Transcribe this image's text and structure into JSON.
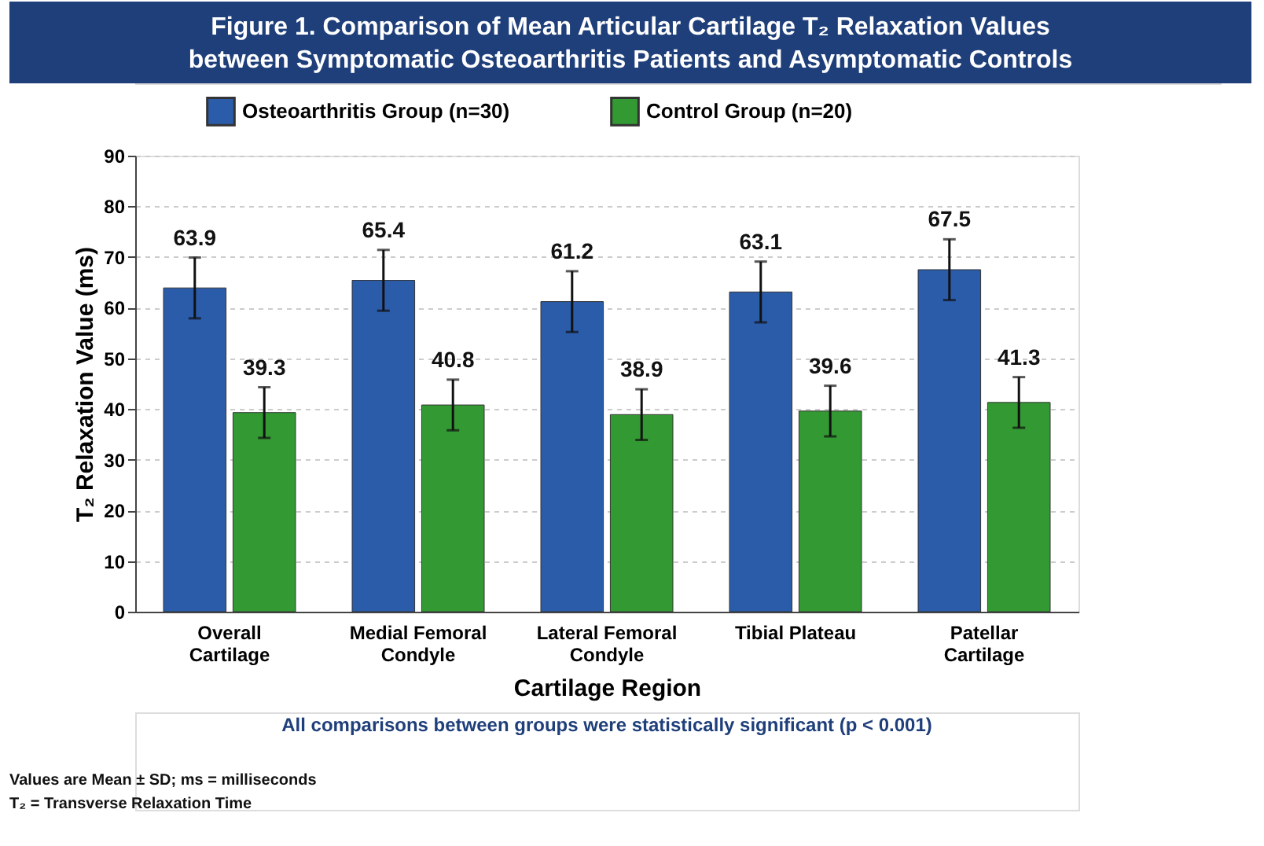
{
  "chart_data": {
    "type": "bar",
    "title": "Figure 1. Comparison of Mean Articular Cartilage T₂ Relaxation Values between Symptomatic Osteoarthritis Patients and Asymptomatic Controls",
    "xlabel": "Cartilage Region",
    "ylabel": "T₂ Relaxation Value (ms)",
    "categories": [
      "Overall Cartilage",
      "Medial Femoral Condyle",
      "Lateral Femoral Condyle",
      "Tibial Plateau",
      "Patellar Cartilage"
    ],
    "series": [
      {
        "name": "Osteoarthritis Group (n=30)",
        "color": "#2a5caa",
        "values": [
          63.9,
          65.4,
          61.2,
          63.1,
          67.5
        ],
        "errors": [
          6,
          6,
          6,
          6,
          6
        ]
      },
      {
        "name": "Control Group (n=20)",
        "color": "#339933",
        "values": [
          39.3,
          40.8,
          38.9,
          39.6,
          41.3
        ],
        "errors": [
          5,
          5,
          5,
          5,
          5
        ]
      }
    ],
    "ylim": [
      0,
      90
    ],
    "yticks": [
      0,
      10,
      20,
      30,
      40,
      50,
      60,
      70,
      80,
      90
    ],
    "grid": "y",
    "legend": "top",
    "data_labels": true,
    "annotations": [
      "All comparisons between groups were statistically significant (p < 0.001)",
      "Values are Mean ± SD; ms = milliseconds",
      "T₂ = Transverse Relaxation Time"
    ]
  }
}
